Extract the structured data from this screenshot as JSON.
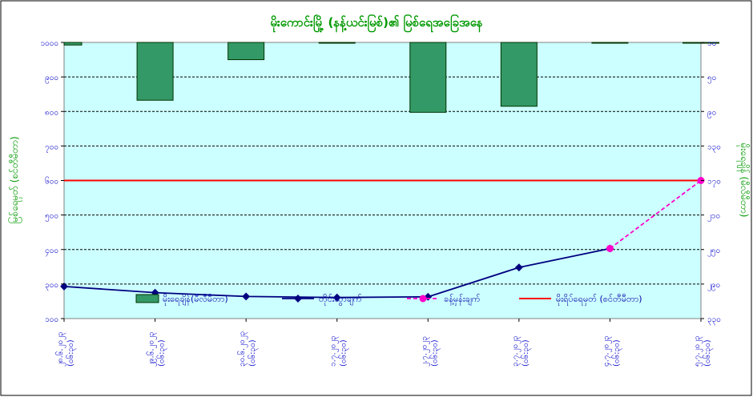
{
  "chart_data": {
    "type": "bar",
    "title": "မိုးကောင်းမြို့ (နန့်ယင်းမြစ်)၏ မြစ်ရေအခြေအနေ",
    "ylabel_left": "မြစ်ရေမှတ် (စင်တီမီတာ)",
    "ylabel_right": "မိုးရေချိန် (မီလီမီတာ)",
    "x_ticks_line1": [
      "၂၈.၆.၂၀၂၃",
      "၂၉.၆.၂၀၂၃",
      "၃၀.၆.၂၀၂၃",
      "၁.၇.၂၀၂၃",
      "၂.၇.၂၀၂၃",
      "၃.၇.၂၀၂၃",
      "၄.၇.၂၀၂၃",
      "၅.၇.၂၀၂၃"
    ],
    "x_ticks_line2": [
      "(၀၆:၃၀)",
      "(၀၆:၃၀)",
      "(၀၆:၃၀)",
      "(၀၆:၃၀)",
      "(၀၆:၃၀)",
      "(၀၆:၃၀)",
      "(၀၆:၃၀)",
      "(၀၆:၃၀)"
    ],
    "y_left_ticks": [
      "၁၀၀၀",
      "၉၀၀",
      "၈၀၀",
      "၇၀၀",
      "၆၀၀",
      "၅၀၀",
      "၄၀၀",
      "၃၀၀",
      "၁၀၀"
    ],
    "y_right_ticks": [
      "၁၀",
      "၅၀",
      "၉၀",
      "၁၃၀",
      "၁၇၀",
      "၂၁၀",
      "၂၅၀",
      "၂၉၀",
      "၃၃၀"
    ],
    "y_left_ticks_note": "values as printed",
    "ylim_left": [
      100,
      1000
    ],
    "ylim_right": [
      10,
      330
    ],
    "threshold": {
      "name": "မိုးရိပ်ရေမှတ် (စင်တီမီတာ)",
      "value": 600
    },
    "series": [
      {
        "name": "မိုးရေချိန်(မီလီမီတာ)",
        "type": "bar",
        "axis": "right",
        "values": [
          13,
          77,
          30,
          10,
          91,
          84,
          10,
          0
        ]
      },
      {
        "name": "တိုင်းထွာချက်",
        "type": "line",
        "axis": "left",
        "values": [
          293,
          275,
          264,
          261,
          263,
          348,
          403,
          null
        ]
      },
      {
        "name": "ခန့်မှန်းချက်",
        "type": "line-dashed",
        "axis": "left",
        "values": [
          null,
          null,
          null,
          null,
          null,
          null,
          403,
          600
        ]
      }
    ],
    "grid": true,
    "legend_placement": "bottom-inside"
  },
  "colors": {
    "plot_bg": "#ccffff",
    "bar": "#339966",
    "bar_stroke": "#003300",
    "measured_line": "#000080",
    "forecast_line": "#ff00cc",
    "threshold_line": "#ff0000",
    "title": "#009900",
    "ticks": "#0000cc"
  }
}
